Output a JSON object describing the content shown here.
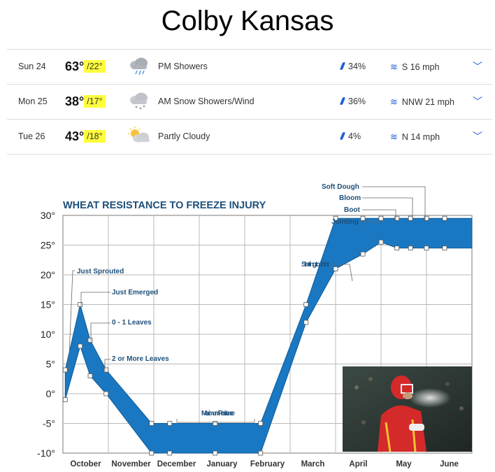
{
  "title": "Colby Kansas",
  "forecast": [
    {
      "day": "Sun 24",
      "high": "63°",
      "low": "/22°",
      "icon": "rain-shower-icon",
      "condition": "PM Showers",
      "precip": "34%",
      "wind": "S 16 mph"
    },
    {
      "day": "Mon 25",
      "high": "38°",
      "low": "/17°",
      "icon": "snow-shower-icon",
      "condition": "AM Snow Showers/Wind",
      "precip": "36%",
      "wind": "NNW 21 mph"
    },
    {
      "day": "Tue 26",
      "high": "43°",
      "low": "/18°",
      "icon": "partly-cloudy-icon",
      "condition": "Partly Cloudy",
      "precip": "4%",
      "wind": "N 14 mph"
    }
  ],
  "colors": {
    "highlight": "#ffff3c",
    "accent": "#1f5fd6",
    "band": "#1a78c2",
    "chart_title": "#1d4f7a"
  },
  "chart_data": {
    "type": "area",
    "title": "WHEAT RESISTANCE TO FREEZE INJURY",
    "categories": [
      "October",
      "November",
      "December",
      "January",
      "February",
      "March",
      "April",
      "May",
      "June"
    ],
    "y_ticks": [
      "30°",
      "25°",
      "20°",
      "15°",
      "10°",
      "5°",
      "0°",
      "-5°",
      "-10°"
    ],
    "ylim": [
      -10,
      30
    ],
    "grid": true,
    "x": [
      0.05,
      0.38,
      0.6,
      0.95,
      1.95,
      2.35,
      3.35,
      4.35,
      5.35,
      6.0,
      6.6,
      7.0,
      7.35,
      7.65,
      8.0,
      8.4,
      9.0
    ],
    "upper": [
      4,
      15,
      9,
      4,
      -5,
      -5,
      -5,
      -5,
      15,
      29.5,
      29.5,
      29.5,
      29.5,
      29.5,
      29.5,
      29.5,
      29.5
    ],
    "lower": [
      -1,
      8,
      3,
      0,
      -10,
      -10,
      -10,
      -10,
      12,
      21,
      23.5,
      25.5,
      24.5,
      24.5,
      24.5,
      24.5,
      24.5
    ],
    "annotations": [
      {
        "label": "Just Sprouted"
      },
      {
        "label": "Just Emerged"
      },
      {
        "label": "0 - 1 Leaves"
      },
      {
        "label": "2 or More Leaves"
      },
      {
        "label": "Maximum Resistance"
      },
      {
        "label": "Starting to Joint"
      },
      {
        "label": "Jointing"
      },
      {
        "label": "Boot"
      },
      {
        "label": "Bloom"
      },
      {
        "label": "Soft Dough"
      }
    ]
  }
}
